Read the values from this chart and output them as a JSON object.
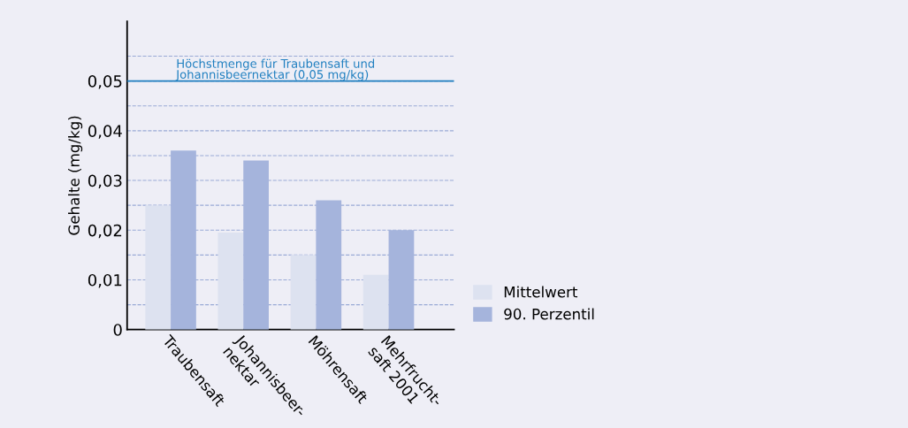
{
  "chart_data": {
    "type": "bar",
    "categories": [
      "Traubensaft",
      "Johannisbeer-\nnektar",
      "Möhrensaft",
      "Mehrfrucht-\nsaft 2001"
    ],
    "series": [
      {
        "name": "Mittelwert",
        "color": "#dde2f0",
        "values": [
          0.025,
          0.0195,
          0.015,
          0.011
        ]
      },
      {
        "name": "90. Perzentil",
        "color": "#a5b4dc",
        "values": [
          0.036,
          0.034,
          0.026,
          0.02
        ]
      }
    ],
    "ylabel": "Gehalte (mg/kg)",
    "ylim": [
      0,
      0.062
    ],
    "yticks": [
      0,
      {
        "value": 0.005,
        "label": null
      },
      {
        "value": 0.01,
        "label": "0,01"
      },
      {
        "value": 0.015,
        "label": null
      },
      {
        "value": 0.02,
        "label": "0,02"
      },
      {
        "value": 0.025,
        "label": null
      },
      {
        "value": 0.03,
        "label": "0,03"
      },
      {
        "value": 0.035,
        "label": null
      },
      {
        "value": 0.04,
        "label": "0,04"
      },
      {
        "value": 0.045,
        "label": null
      },
      {
        "value": 0.05,
        "label": "0,05"
      },
      {
        "value": 0.055,
        "label": null
      }
    ],
    "grid": "y",
    "legend": "bottom right",
    "ref_lines": [
      {
        "axis": "y",
        "value": 0.05,
        "label": "Höchstmenge für Traubensaft und\nJohannisbeernektar (0,05 mg/kg)",
        "color": "#1f7fc0",
        "line_style": "solid"
      }
    ]
  }
}
